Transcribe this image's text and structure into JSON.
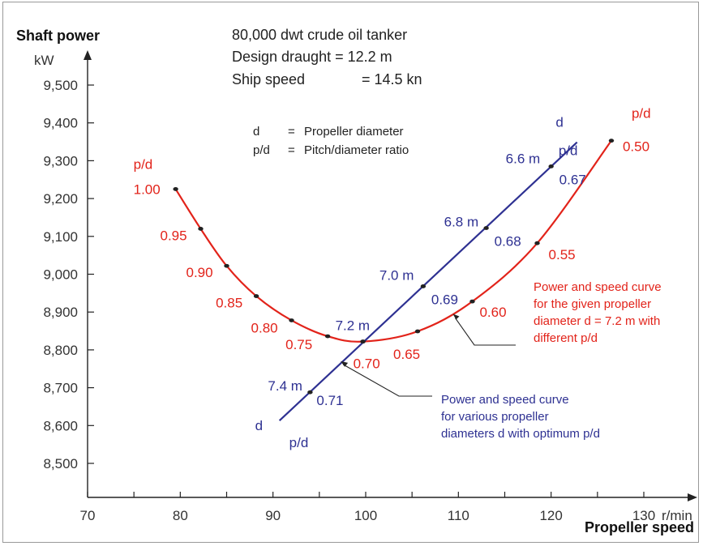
{
  "chart_data": {
    "type": "line",
    "ylabel": "Shaft power",
    "yunit": "kW",
    "xlabel": "Propeller speed",
    "xunit": "r/min",
    "xlim": [
      70,
      130
    ],
    "ylim": [
      8450,
      9600
    ],
    "x_ticks": [
      70,
      80,
      90,
      100,
      110,
      120,
      130
    ],
    "x_tick_labels": [
      "70",
      "80",
      "90",
      "100",
      "110",
      "120",
      "130"
    ],
    "y_ticks": [
      8500,
      8600,
      8700,
      8800,
      8900,
      9000,
      9100,
      9200,
      9300,
      9400,
      9500
    ],
    "y_tick_labels": [
      "8,500",
      "8,600",
      "8,700",
      "8,800",
      "8,900",
      "9,000",
      "9,100",
      "9,200",
      "9,300",
      "9,400",
      "9,500"
    ],
    "info_lines": [
      "80,000 dwt crude oil tanker",
      "Design draught = 12.2 m",
      "Ship speed",
      "= 14.5 kn"
    ],
    "legend": [
      {
        "symbol": "d",
        "eq": "=",
        "text": "Propeller diameter"
      },
      {
        "symbol": "p/d",
        "eq": "=",
        "text": "Pitch/diameter ratio"
      }
    ],
    "series": [
      {
        "key": "red",
        "color": "#e2231a",
        "end_label_left": "p/d",
        "end_label_right": "p/d",
        "points": [
          {
            "x": 79.5,
            "y": 9225,
            "label": "1.00"
          },
          {
            "x": 82.2,
            "y": 9120,
            "label": "0.95"
          },
          {
            "x": 85.0,
            "y": 9022,
            "label": "0.90"
          },
          {
            "x": 88.2,
            "y": 8942,
            "label": "0.85"
          },
          {
            "x": 92.0,
            "y": 8878,
            "label": "0.80"
          },
          {
            "x": 95.9,
            "y": 8836,
            "label": "0.75"
          },
          {
            "x": 99.7,
            "y": 8822,
            "label": "0.70"
          },
          {
            "x": 105.6,
            "y": 8849,
            "label": "0.65"
          },
          {
            "x": 111.5,
            "y": 8928,
            "label": "0.60"
          },
          {
            "x": 118.5,
            "y": 9082,
            "label": "0.55"
          },
          {
            "x": 126.5,
            "y": 9353,
            "label": "0.50"
          }
        ]
      },
      {
        "key": "blue",
        "color": "#2e3192",
        "end_label_bottom_d": "d",
        "end_label_bottom_pd": "p/d",
        "end_label_top_d": "d",
        "end_label_top_pd": "p/d",
        "line_start": {
          "x": 90.7,
          "y": 8613
        },
        "line_end": {
          "x": 122.8,
          "y": 9349
        },
        "points": [
          {
            "x": 94.0,
            "y": 8688,
            "d": "7.4 m",
            "pd": "0.71"
          },
          {
            "x": 99.7,
            "y": 8822,
            "d": "7.2 m",
            "pd": ""
          },
          {
            "x": 106.2,
            "y": 8968,
            "d": "7.0 m",
            "pd": "0.69"
          },
          {
            "x": 113.0,
            "y": 9122,
            "d": "6.8 m",
            "pd": "0.68"
          },
          {
            "x": 120.0,
            "y": 9285,
            "d": "6.6 m",
            "pd": "0.67"
          }
        ]
      }
    ],
    "annotations": {
      "red_note": [
        "Power and speed curve",
        "for the given propeller",
        "diameter d = 7.2 m with",
        "different p/d"
      ],
      "blue_note": [
        "Power and speed curve",
        "for various propeller",
        "diameters d with optimum p/d"
      ]
    },
    "grid": false
  }
}
